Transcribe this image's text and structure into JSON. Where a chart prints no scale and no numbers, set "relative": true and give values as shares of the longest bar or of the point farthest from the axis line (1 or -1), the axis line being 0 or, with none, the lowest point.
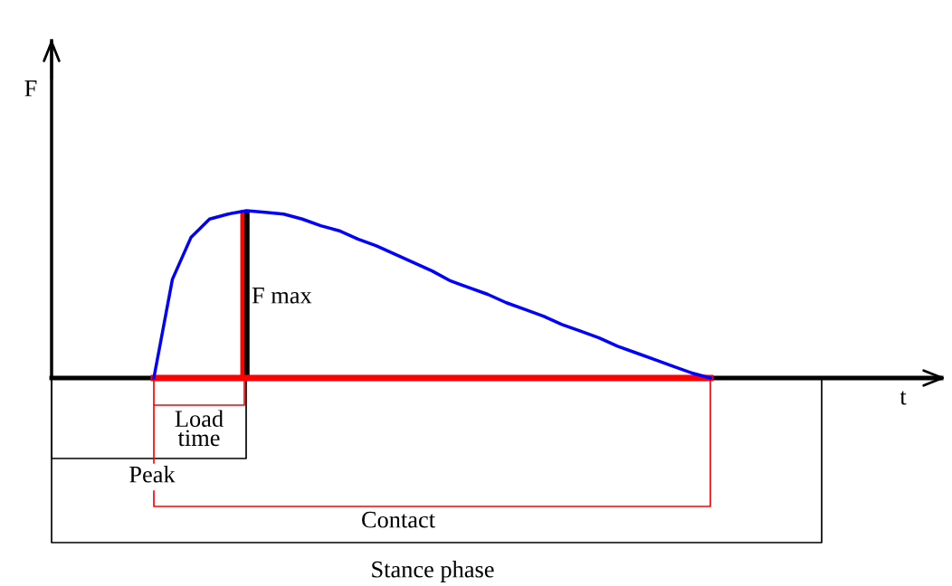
{
  "chart_data": {
    "type": "line",
    "relative": true,
    "categories": [
      null,
      null,
      null,
      null,
      null,
      null,
      null,
      null,
      null,
      null,
      null,
      null,
      null,
      null,
      null,
      null,
      null,
      null,
      null,
      null,
      null,
      null,
      null,
      null,
      null,
      null,
      null,
      null,
      null,
      null,
      null
    ],
    "series": [
      {
        "color": "#ff0000",
        "values": [
          0,
          0,
          0,
          0,
          0,
          0,
          0,
          0,
          0,
          0,
          0,
          0,
          0,
          0,
          0,
          0,
          0,
          0,
          0,
          0,
          0,
          0,
          0,
          0,
          0,
          0,
          0,
          0,
          0,
          0,
          0
        ]
      },
      {
        "color": "#0000ff",
        "values": [
          0,
          0.59,
          0.84,
          0.95,
          0.98,
          1.0,
          0.99,
          0.98,
          0.95,
          0.91,
          0.88,
          0.83,
          0.79,
          0.74,
          0.69,
          0.64,
          0.58,
          0.54,
          0.5,
          0.45,
          0.41,
          0.37,
          0.32,
          0.28,
          0.24,
          0.19,
          0.15,
          0.11,
          0.07,
          0.03,
          0
        ]
      }
    ],
    "annotations": [
      "F max",
      "Load\ntime",
      "Peak",
      "Contact",
      "Stance phase",
      "F",
      "t"
    ],
    "legend": false,
    "marker": "none",
    "line_style": "solid"
  }
}
